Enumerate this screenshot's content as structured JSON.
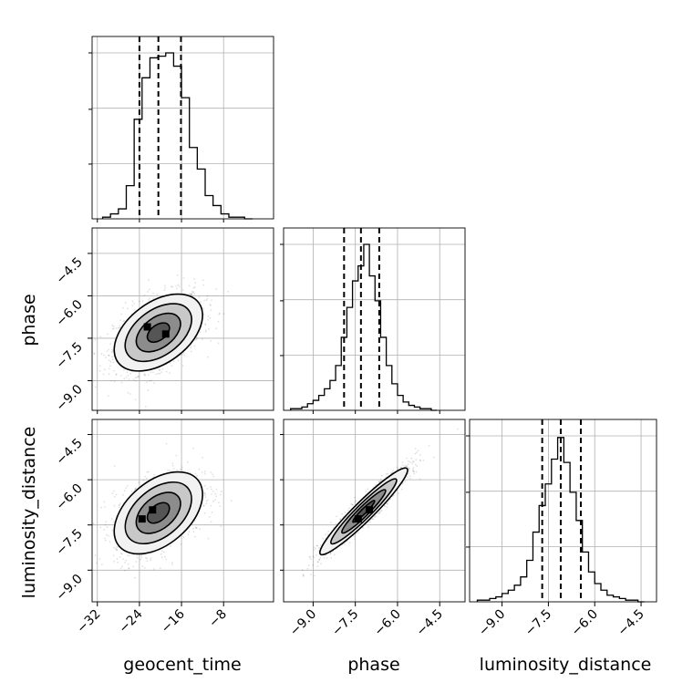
{
  "chart_data": {
    "type": "corner",
    "parameters": [
      "geocent_time",
      "phase",
      "luminosity_distance"
    ],
    "axis_labels": {
      "geocent_time": "geocent_time",
      "phase": "phase",
      "luminosity_distance": "luminosity_distance"
    },
    "ranges": {
      "geocent_time": [
        -33.0,
        1.5
      ],
      "phase": [
        -10.05,
        -3.6
      ],
      "luminosity_distance": [
        -10.05,
        -4.0
      ]
    },
    "ticks": {
      "geocent_time": [
        {
          "value": -32,
          "label": "−32"
        },
        {
          "value": -24,
          "label": "−24"
        },
        {
          "value": -16,
          "label": "−16"
        },
        {
          "value": -8,
          "label": "−8"
        }
      ],
      "phase": [
        {
          "value": -9.0,
          "label": "−9.0"
        },
        {
          "value": -7.5,
          "label": "−7.5"
        },
        {
          "value": -6.0,
          "label": "−6.0"
        },
        {
          "value": -4.5,
          "label": "−4.5"
        }
      ],
      "luminosity_distance": [
        {
          "value": -9.0,
          "label": "−9.0"
        },
        {
          "value": -7.5,
          "label": "−7.5"
        },
        {
          "value": -6.0,
          "label": "−6.0"
        },
        {
          "value": -4.5,
          "label": "−4.5"
        }
      ]
    },
    "quantiles": {
      "geocent_time": [
        -24.0,
        -20.4,
        -16.1
      ],
      "phase": [
        -7.9,
        -7.3,
        -6.65
      ],
      "luminosity_distance": [
        -7.7,
        -7.1,
        -6.45
      ]
    },
    "histograms": {
      "geocent_time": {
        "edges": [
          -31.0,
          -29.5,
          -28.0,
          -26.5,
          -25.0,
          -23.5,
          -22.0,
          -20.5,
          -19.0,
          -17.5,
          -16.0,
          -14.5,
          -13.0,
          -11.5,
          -10.0,
          -8.5,
          -7.0,
          -5.5,
          -4.0,
          -2.5
        ],
        "counts": [
          0.01,
          0.03,
          0.06,
          0.2,
          0.6,
          0.85,
          0.97,
          0.98,
          1.0,
          0.92,
          0.73,
          0.43,
          0.3,
          0.14,
          0.08,
          0.03,
          0.01,
          0.01,
          0.0
        ]
      },
      "phase": {
        "edges": [
          -9.8,
          -9.6,
          -9.4,
          -9.2,
          -9.0,
          -8.8,
          -8.6,
          -8.4,
          -8.2,
          -8.0,
          -7.8,
          -7.6,
          -7.4,
          -7.2,
          -7.0,
          -6.8,
          -6.6,
          -6.4,
          -6.2,
          -6.0,
          -5.8,
          -5.6,
          -5.4,
          -5.2,
          -5.0,
          -4.8,
          -4.6
        ],
        "counts": [
          0.01,
          0.01,
          0.02,
          0.04,
          0.06,
          0.09,
          0.13,
          0.18,
          0.27,
          0.44,
          0.62,
          0.78,
          0.87,
          1.0,
          0.81,
          0.66,
          0.44,
          0.27,
          0.16,
          0.09,
          0.05,
          0.03,
          0.02,
          0.01,
          0.01,
          0.0
        ]
      },
      "luminosity_distance": {
        "edges": [
          -9.8,
          -9.6,
          -9.4,
          -9.2,
          -9.0,
          -8.8,
          -8.6,
          -8.4,
          -8.2,
          -8.0,
          -7.8,
          -7.6,
          -7.4,
          -7.2,
          -7.0,
          -6.8,
          -6.6,
          -6.4,
          -6.2,
          -6.0,
          -5.8,
          -5.6,
          -5.4,
          -5.2,
          -5.0,
          -4.8,
          -4.6,
          -4.4
        ],
        "counts": [
          0.01,
          0.01,
          0.02,
          0.03,
          0.05,
          0.07,
          0.1,
          0.15,
          0.25,
          0.42,
          0.58,
          0.71,
          0.86,
          0.99,
          0.84,
          0.66,
          0.49,
          0.3,
          0.18,
          0.11,
          0.07,
          0.04,
          0.03,
          0.02,
          0.01,
          0.01,
          0.0
        ]
      }
    },
    "joint": [
      {
        "x": "geocent_time",
        "y": "phase",
        "mean": [
          -20.4,
          -7.3
        ],
        "sd": [
          4.2,
          0.68
        ],
        "rho": 0.45,
        "contour_levels": [
          0.5,
          1.0,
          1.5,
          2.0
        ],
        "peaks": [
          [
            -22.5,
            -7.1
          ],
          [
            -19.0,
            -7.35
          ]
        ]
      },
      {
        "x": "geocent_time",
        "y": "luminosity_distance",
        "mean": [
          -20.4,
          -7.1
        ],
        "sd": [
          4.2,
          0.68
        ],
        "rho": 0.45,
        "contour_levels": [
          0.5,
          1.0,
          1.5,
          2.0
        ],
        "peaks": [
          [
            -23.5,
            -7.3
          ],
          [
            -21.5,
            -7.0
          ]
        ]
      },
      {
        "x": "phase",
        "y": "luminosity_distance",
        "mean": [
          -7.2,
          -7.05
        ],
        "sd": [
          0.78,
          0.72
        ],
        "rho": 0.95,
        "contour_levels": [
          0.5,
          1.0,
          1.5,
          2.0
        ],
        "peaks": [
          [
            -7.4,
            -7.3
          ],
          [
            -7.0,
            -7.0
          ]
        ]
      }
    ],
    "grid": true,
    "legend": "none"
  }
}
